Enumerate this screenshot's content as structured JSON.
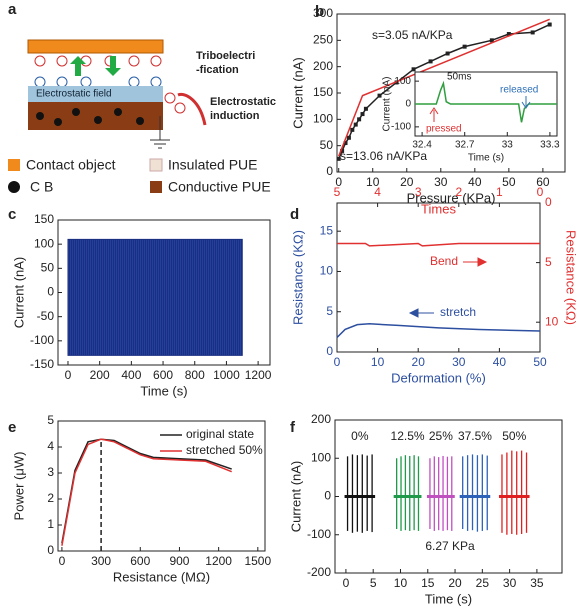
{
  "diagram": {
    "label": "a",
    "triboelectrification": [
      "Triboelectri",
      "-fication"
    ],
    "field": "Electrostatic field",
    "induction": [
      "Electrostatic",
      "induction"
    ],
    "legend": [
      "Contact object",
      "Insulated PUE",
      "C B",
      "Conductive PUE"
    ]
  },
  "chart_data": [
    {
      "type": "line",
      "label": "b",
      "xlabel": "Pressure (KPa)",
      "ylabel": "Current (nA)",
      "xlim": [
        -0.5,
        66.5
      ],
      "xticks": [
        0,
        10,
        20,
        30,
        40,
        50,
        60
      ],
      "ylim": [
        0,
        300
      ],
      "yticks": [
        0,
        50,
        100,
        150,
        200,
        250,
        300
      ],
      "series": [
        {
          "color": "#222222",
          "marker": true,
          "x": [
            0,
            1,
            2,
            3,
            4,
            5,
            6,
            7,
            8,
            12,
            17,
            22,
            27,
            32,
            37,
            45,
            50,
            57,
            62
          ],
          "values": [
            25,
            40,
            55,
            65,
            80,
            90,
            100,
            110,
            120,
            145,
            170,
            195,
            210,
            225,
            238,
            250,
            262,
            265,
            280
          ]
        },
        {
          "color": "#e03030",
          "x": [
            0,
            7,
            62
          ],
          "values": [
            30,
            145,
            290
          ]
        }
      ],
      "annotations": [
        {
          "text": "s=3.05 nA/KPa",
          "color": "#222222"
        },
        {
          "text": "s=13.06 nA/KPa",
          "color": "#222222"
        }
      ]
    },
    {
      "type": "line",
      "xlabel": "Time (s)",
      "ylabel": "Current (nA)",
      "xlim": [
        32.35,
        33.35
      ],
      "xticks": [
        32.4,
        32.7,
        33.0,
        33.3
      ],
      "ylim": [
        -140,
        140
      ],
      "yticks": [
        -100,
        0,
        100
      ],
      "series": [
        {
          "color": "#2e9e3e",
          "x": [
            32.35,
            32.5,
            32.53,
            32.55,
            32.57,
            32.6,
            33.05,
            33.08,
            33.1,
            33.12,
            33.15,
            33.35
          ],
          "values": [
            0,
            0,
            60,
            90,
            10,
            0,
            0,
            0,
            -80,
            -20,
            0,
            0
          ]
        }
      ],
      "annotations": [
        {
          "text": "50ms",
          "color": "#222222"
        },
        {
          "text": "pressed",
          "color": "#e03030"
        },
        {
          "text": "released",
          "color": "#2d6fb8"
        }
      ]
    },
    {
      "type": "band",
      "label": "c",
      "xlabel": "Time (s)",
      "ylabel": "Current (nA)",
      "xlim": [
        -63,
        1275
      ],
      "xticks": [
        0,
        200,
        400,
        600,
        800,
        1000,
        1200
      ],
      "ylim": [
        -150,
        150
      ],
      "yticks": [
        -150,
        -100,
        -50,
        0,
        50,
        100,
        150
      ],
      "color": "#1a2f80",
      "x": [
        0,
        1100
      ],
      "max": [
        110,
        110
      ],
      "min": [
        -130,
        -130
      ]
    },
    {
      "type": "line",
      "label": "d",
      "xlabel": "Deformation (%)",
      "ylabel": "Resistance (KΩ)",
      "x2label": "Times",
      "y2label": "Resistance (KΩ)",
      "xlim": [
        0,
        50
      ],
      "xticks": [
        0,
        10,
        20,
        30,
        40,
        50
      ],
      "x2lim": [
        5,
        0
      ],
      "x2ticks": [
        5,
        4,
        3,
        2,
        1,
        0
      ],
      "ylim": [
        0,
        18.5
      ],
      "yticks": [
        0,
        5,
        10,
        15
      ],
      "y2lim": [
        12.5,
        0
      ],
      "y2ticks": [
        0,
        5,
        10
      ],
      "x_color": "#2d4fa0",
      "y_color": "#2d4fa0",
      "x2_color": "#e03030",
      "y2_color": "#e03030",
      "series": [
        {
          "color": "#2d4fa0",
          "x": [
            0,
            2,
            5,
            8,
            15,
            25,
            35,
            50
          ],
          "values": [
            1.8,
            2.8,
            3.4,
            3.5,
            3.3,
            3.0,
            2.8,
            2.6
          ]
        },
        {
          "color": "#e03030",
          "axis": "y2",
          "x_axis": "x2",
          "x": [
            5,
            4.3,
            4.2,
            3,
            2.9,
            2,
            1,
            0
          ],
          "values": [
            3.4,
            3.4,
            3.6,
            3.4,
            3.6,
            3.4,
            3.4,
            3.4
          ]
        }
      ],
      "annotations": [
        {
          "text": "Bend",
          "color": "#e03030"
        },
        {
          "text": "stretch",
          "color": "#2d4fa0"
        }
      ]
    },
    {
      "type": "line",
      "label": "e",
      "xlabel": "Resistance (MΩ)",
      "ylabel": "Power (μW)",
      "xlim": [
        -30,
        1555
      ],
      "xticks": [
        0,
        300,
        600,
        900,
        1200,
        1500
      ],
      "ylim": [
        0,
        5
      ],
      "yticks": [
        0,
        1,
        2,
        3,
        4,
        5
      ],
      "legend": "upper right",
      "vline_x": 300,
      "vline_top": 4.3,
      "series": [
        {
          "name": "original state",
          "color": "#222222",
          "x": [
            0,
            100,
            200,
            300,
            400,
            500,
            600,
            700,
            900,
            1100,
            1300
          ],
          "values": [
            0.3,
            3.1,
            4.2,
            4.3,
            4.25,
            4.0,
            3.75,
            3.6,
            3.55,
            3.5,
            3.15
          ]
        },
        {
          "name": "stretched 50%",
          "color": "#e03030",
          "x": [
            0,
            100,
            200,
            300,
            400,
            500,
            600,
            700,
            900,
            1100,
            1300
          ],
          "values": [
            0.2,
            3.0,
            4.1,
            4.3,
            4.2,
            3.95,
            3.7,
            3.55,
            3.5,
            3.45,
            3.05
          ]
        }
      ]
    },
    {
      "type": "spikes",
      "label": "f",
      "xlabel": "Time (s)",
      "ylabel": "Current (nA)",
      "xlim": [
        -2,
        39.6
      ],
      "xticks": [
        0,
        5,
        10,
        15,
        20,
        25,
        30,
        35
      ],
      "ylim": [
        -200,
        200
      ],
      "yticks": [
        -200,
        -100,
        0,
        100,
        200
      ],
      "series": [
        {
          "name": "0%",
          "color": "#111111",
          "x": [
            0.3,
            1.2,
            2.1,
            3.0,
            3.9,
            4.8
          ],
          "values": [
            105,
            110,
            108,
            110,
            107,
            110
          ],
          "lows": [
            -90,
            -95,
            -92,
            -95,
            -90,
            -93
          ]
        },
        {
          "name": "12.5%",
          "color": "#1e9a4a",
          "x": [
            9.3,
            10.1,
            10.9,
            11.7,
            12.5,
            13.3
          ],
          "values": [
            100,
            105,
            108,
            106,
            108,
            105
          ],
          "lows": [
            -85,
            -90,
            -88,
            -90,
            -88,
            -90
          ]
        },
        {
          "name": "25%",
          "color": "#c050c0",
          "x": [
            15.4,
            16.2,
            17.0,
            17.8,
            18.6,
            19.4
          ],
          "values": [
            100,
            105,
            103,
            106,
            104,
            105
          ],
          "lows": [
            -85,
            -90,
            -88,
            -90,
            -88,
            -90
          ]
        },
        {
          "name": "37.5%",
          "color": "#2d62b8",
          "x": [
            21.4,
            22.3,
            23.2,
            24.1,
            25.0,
            25.9
          ],
          "values": [
            105,
            108,
            110,
            108,
            110,
            107
          ],
          "lows": [
            -85,
            -90,
            -88,
            -92,
            -90,
            -88
          ]
        },
        {
          "name": "50%",
          "color": "#e02020",
          "x": [
            28.6,
            29.5,
            30.4,
            31.3,
            32.2,
            33.1
          ],
          "values": [
            110,
            115,
            120,
            118,
            120,
            115
          ],
          "lows": [
            -95,
            -100,
            -98,
            -100,
            -98,
            -95
          ]
        }
      ],
      "annotations": [
        {
          "text": "6.27 KPa",
          "color": "#222222"
        }
      ]
    }
  ]
}
